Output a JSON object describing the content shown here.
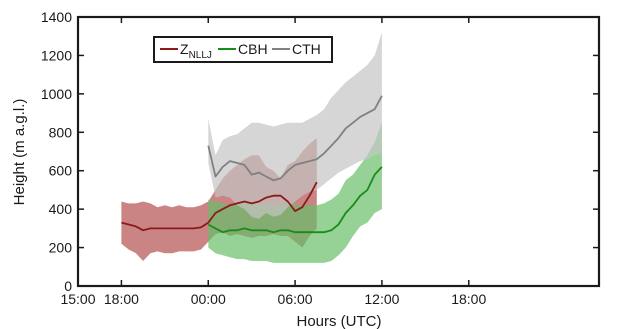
{
  "chart_data": {
    "type": "line",
    "xlabel": "Hours (UTC)",
    "ylabel": "Height (m a.g.l.)",
    "xlim": [
      -9,
      27
    ],
    "ylim": [
      0,
      1400
    ],
    "x_ticks": [
      -9,
      -6,
      0,
      6,
      12,
      18
    ],
    "x_tick_labels": [
      "15:00",
      "18:00",
      "00:00",
      "06:00",
      "12:00",
      "18:00"
    ],
    "y_ticks": [
      0,
      200,
      400,
      600,
      800,
      1000,
      1200,
      1400
    ],
    "y_tick_labels": [
      "0",
      "200",
      "400",
      "600",
      "800",
      "1000",
      "1200",
      "1400"
    ],
    "grid": false,
    "legend_position": "top-left",
    "legend": [
      {
        "main": "Z",
        "sub": "NLLJ",
        "series": "znllj"
      },
      {
        "main": "CBH",
        "sub": "",
        "series": "cbh"
      },
      {
        "main": "CTH",
        "sub": "",
        "series": "cth"
      }
    ],
    "series": [
      {
        "id": "znllj",
        "color": "#8b1a1a",
        "band_color": "#b35050",
        "x": [
          -6.0,
          -5.5,
          -5.0,
          -4.5,
          -4.0,
          -3.5,
          -3.0,
          -2.5,
          -2.0,
          -1.5,
          -1.0,
          -0.5,
          0.0,
          0.5,
          1.0,
          1.5,
          2.0,
          2.5,
          3.0,
          3.5,
          4.0,
          4.5,
          5.0,
          5.5,
          6.0,
          6.5,
          7.0,
          7.5
        ],
        "y": [
          330,
          320,
          310,
          290,
          300,
          300,
          300,
          300,
          300,
          300,
          300,
          305,
          330,
          380,
          400,
          420,
          430,
          440,
          430,
          440,
          460,
          470,
          470,
          440,
          390,
          410,
          470,
          540
        ],
        "upper": [
          440,
          430,
          430,
          440,
          430,
          410,
          420,
          410,
          420,
          410,
          410,
          420,
          440,
          500,
          560,
          600,
          630,
          660,
          680,
          680,
          620,
          600,
          560,
          630,
          650,
          700,
          740,
          770
        ],
        "lower": [
          220,
          190,
          170,
          130,
          170,
          180,
          170,
          170,
          180,
          180,
          180,
          190,
          230,
          270,
          280,
          260,
          270,
          260,
          250,
          260,
          260,
          270,
          260,
          260,
          230,
          200,
          260,
          300
        ]
      },
      {
        "id": "cbh",
        "color": "#1a8c1a",
        "band_color": "#6abf6a",
        "x": [
          0.0,
          0.5,
          1.0,
          1.5,
          2.0,
          2.5,
          3.0,
          3.5,
          4.0,
          4.5,
          5.0,
          5.5,
          6.0,
          6.5,
          7.0,
          7.5,
          8.0,
          8.5,
          9.0,
          9.5,
          10.0,
          10.5,
          11.0,
          11.5,
          12.0
        ],
        "y": [
          320,
          300,
          280,
          290,
          290,
          300,
          290,
          290,
          290,
          280,
          290,
          290,
          280,
          280,
          280,
          280,
          280,
          290,
          320,
          380,
          420,
          470,
          500,
          580,
          620
        ],
        "upper": [
          450,
          440,
          430,
          420,
          430,
          430,
          430,
          420,
          430,
          420,
          420,
          430,
          420,
          420,
          420,
          420,
          430,
          450,
          480,
          550,
          580,
          630,
          680,
          750,
          850
        ],
        "lower": [
          200,
          170,
          160,
          150,
          140,
          140,
          130,
          130,
          130,
          120,
          120,
          120,
          120,
          120,
          120,
          120,
          120,
          130,
          160,
          200,
          260,
          310,
          330,
          380,
          400
        ]
      },
      {
        "id": "cth",
        "color": "#808080",
        "band_color": "#c4c4c4",
        "x": [
          0.0,
          0.5,
          1.0,
          1.5,
          2.0,
          2.5,
          3.0,
          3.5,
          4.0,
          4.5,
          5.0,
          5.5,
          6.0,
          6.5,
          7.0,
          7.5,
          8.0,
          8.5,
          9.0,
          9.5,
          10.0,
          10.5,
          11.0,
          11.5,
          12.0
        ],
        "y": [
          730,
          570,
          620,
          650,
          640,
          630,
          580,
          590,
          570,
          550,
          560,
          600,
          630,
          640,
          650,
          660,
          690,
          730,
          770,
          820,
          850,
          880,
          900,
          920,
          990
        ],
        "upper": [
          870,
          680,
          760,
          780,
          790,
          820,
          850,
          850,
          840,
          830,
          840,
          850,
          850,
          850,
          870,
          890,
          920,
          980,
          1020,
          1060,
          1090,
          1120,
          1150,
          1200,
          1320
        ],
        "lower": [
          640,
          460,
          470,
          460,
          420,
          400,
          360,
          350,
          380,
          360,
          370,
          410,
          440,
          470,
          490,
          500,
          530,
          560,
          590,
          610,
          630,
          650,
          660,
          680,
          690
        ]
      }
    ]
  }
}
